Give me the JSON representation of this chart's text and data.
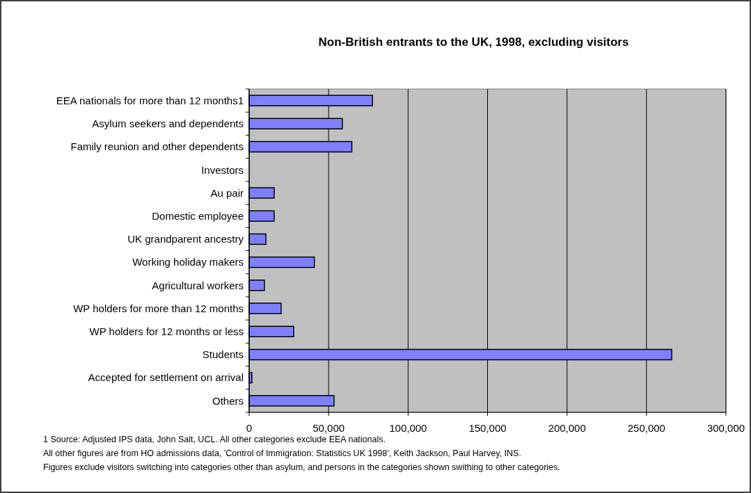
{
  "chart_data": {
    "type": "bar",
    "orientation": "horizontal",
    "title": "Non-British entrants to the UK, 1998, excluding visitors",
    "categories": [
      "EEA nationals for more than 12 months1",
      "Asylum seekers and dependents",
      "Family reunion and other dependents",
      "Investors",
      "Au pair",
      "Domestic employee",
      "UK grandparent ancestry",
      "Working holiday makers",
      "Agricultural workers",
      "WP holders for more than 12 months",
      "WP holders for 12 months or less",
      "Students",
      "Accepted for settlement on arrival",
      "Others"
    ],
    "values": [
      77600,
      58600,
      64600,
      0,
      15700,
      15700,
      10500,
      41000,
      9600,
      20100,
      28000,
      265900,
      1700,
      53400
    ],
    "color": "#8080ff",
    "xlim": [
      0,
      300000
    ],
    "xticks": [
      {
        "value": 0,
        "label": "0"
      },
      {
        "value": 50000,
        "label": "50,000"
      },
      {
        "value": 100000,
        "label": "100,000"
      },
      {
        "value": 150000,
        "label": "150,000"
      },
      {
        "value": 200000,
        "label": "200,000"
      },
      {
        "value": 250000,
        "label": "250,000"
      },
      {
        "value": 300000,
        "label": "300,000"
      }
    ],
    "grid": "x",
    "annotations": [
      "1 Source: Adjusted IPS data, John Salt, UCL. All other categories exclude EEA nationals.",
      "All other figures are from HO admissions data, 'Control of Immigration: Statistics UK 1998', Keith Jackson, Paul Harvey, INS.",
      "Figures exclude visitors switching into categories other than asylum, and persons in the categories shown swithing to other categories."
    ]
  }
}
